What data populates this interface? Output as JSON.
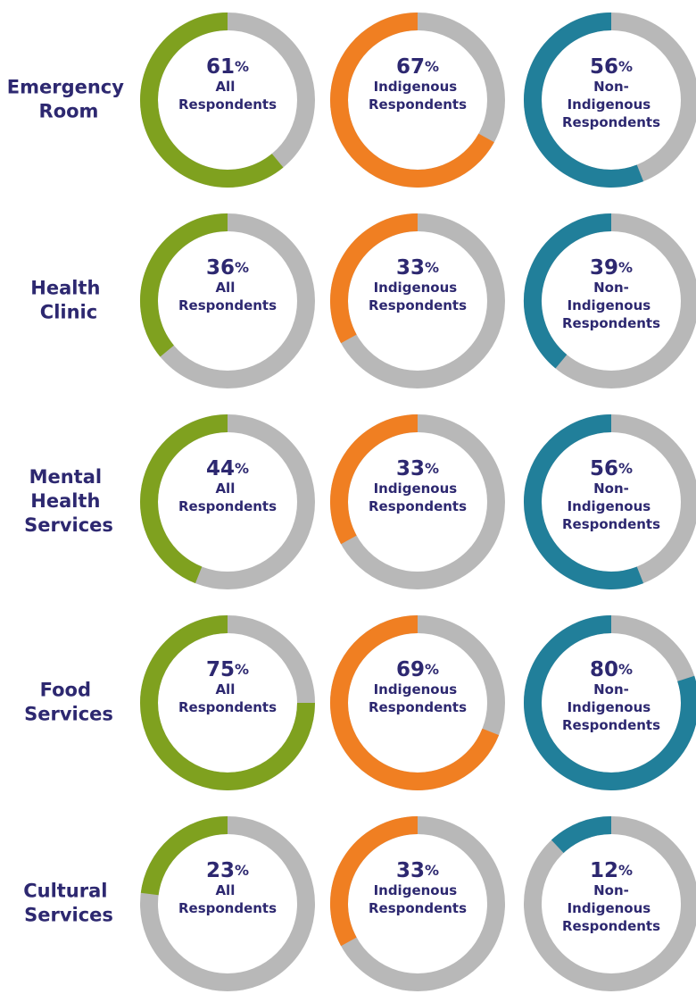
{
  "chart_data": {
    "type": "donut",
    "categories": [
      "Emergency Room",
      "Health Clinic",
      "Mental Health Services",
      "Food Services",
      "Cultural Services"
    ],
    "series": [
      {
        "name": "All Respondents",
        "color": "#7fa11f",
        "values": [
          61,
          36,
          44,
          75,
          23
        ],
        "value_labels": [
          "61%",
          "36%",
          "44%",
          "75%",
          "23%"
        ]
      },
      {
        "name": "Indigenous Respondents",
        "color": "#f07f22",
        "values": [
          67,
          33,
          33,
          69,
          33
        ],
        "value_labels": [
          "67%",
          "33%",
          "33%",
          "69%",
          "33%"
        ]
      },
      {
        "name": "Non-Indigenous Respondents",
        "color": "#217f9a",
        "values": [
          56,
          39,
          56,
          80,
          12
        ],
        "value_labels": [
          "56%",
          "39%",
          "56%",
          "80%",
          "12%"
        ]
      }
    ],
    "remainder_color": "#b8b8b8"
  }
}
